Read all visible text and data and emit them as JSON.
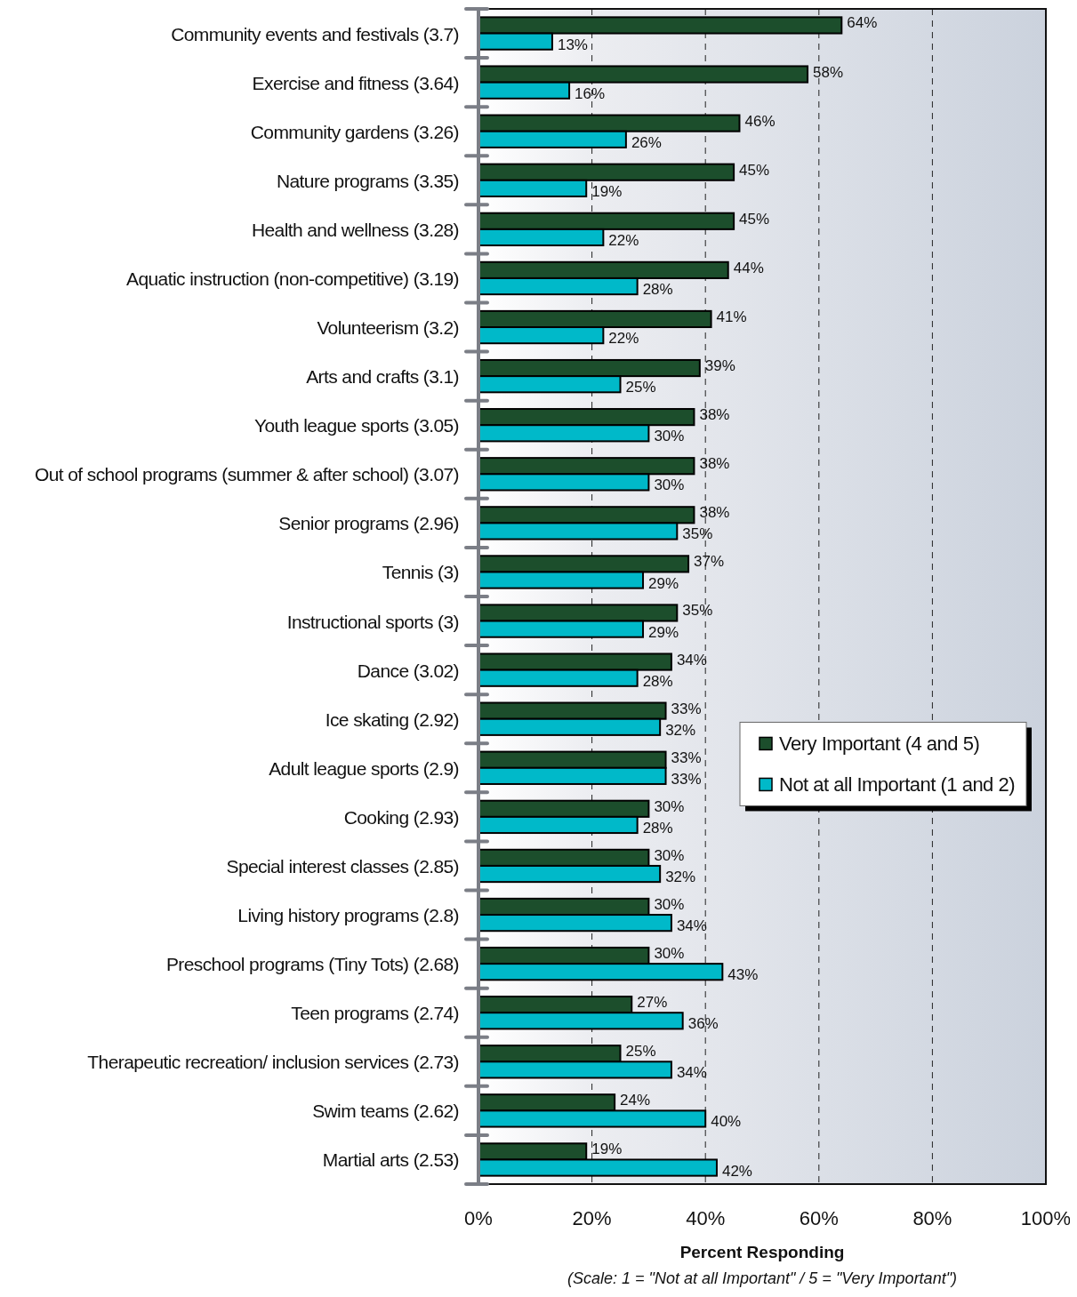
{
  "chart_data": {
    "type": "bar",
    "orientation": "horizontal",
    "categories": [
      "Community events and festivals (3.7)",
      "Exercise and fitness (3.64)",
      "Community gardens (3.26)",
      "Nature programs (3.35)",
      "Health and wellness (3.28)",
      "Aquatic instruction (non-competitive) (3.19)",
      "Volunteerism (3.2)",
      "Arts and crafts (3.1)",
      "Youth league sports (3.05)",
      "Out of school programs (summer & after school) (3.07)",
      "Senior programs (2.96)",
      "Tennis (3)",
      "Instructional sports (3)",
      "Dance (3.02)",
      "Ice skating (2.92)",
      "Adult league sports (2.9)",
      "Cooking (2.93)",
      "Special interest classes (2.85)",
      "Living history programs (2.8)",
      "Preschool programs (Tiny Tots) (2.68)",
      "Teen programs (2.74)",
      "Therapeutic recreation/ inclusion services (2.73)",
      "Swim teams (2.62)",
      "Martial arts (2.53)"
    ],
    "series": [
      {
        "name": "Very Important (4 and 5)",
        "color": "#1c4e2c",
        "values": [
          64,
          58,
          46,
          45,
          45,
          44,
          41,
          39,
          38,
          38,
          38,
          37,
          35,
          34,
          33,
          33,
          30,
          30,
          30,
          30,
          27,
          25,
          24,
          19
        ],
        "value_labels": [
          "64%",
          "58%",
          "46%",
          "45%",
          "45%",
          "44%",
          "41%",
          "39%",
          "38%",
          "38%",
          "38%",
          "37%",
          "35%",
          "34%",
          "33%",
          "33%",
          "30%",
          "30%",
          "30%",
          "30%",
          "27%",
          "25%",
          "24%",
          "19%"
        ]
      },
      {
        "name": "Not at all Important (1 and 2)",
        "color": "#00b9c9",
        "values": [
          13,
          16,
          26,
          19,
          22,
          28,
          22,
          25,
          30,
          30,
          35,
          29,
          29,
          28,
          32,
          33,
          28,
          32,
          34,
          43,
          36,
          34,
          40,
          42
        ],
        "value_labels": [
          "13%",
          "16%",
          "26%",
          "19%",
          "22%",
          "28%",
          "22%",
          "25%",
          "30%",
          "30%",
          "35%",
          "29%",
          "29%",
          "28%",
          "32%",
          "33%",
          "28%",
          "32%",
          "34%",
          "43%",
          "36%",
          "34%",
          "40%",
          "42%"
        ]
      }
    ],
    "xlim": [
      0,
      100
    ],
    "xticks": [
      {
        "value": 0,
        "label": "0%"
      },
      {
        "value": 20,
        "label": "20%"
      },
      {
        "value": 40,
        "label": "40%"
      },
      {
        "value": 60,
        "label": "60%"
      },
      {
        "value": 80,
        "label": "80%"
      },
      {
        "value": 100,
        "label": "100%"
      }
    ],
    "xlabel": "Percent Responding",
    "annotations": [
      "(Scale: 1 = \"Not at all Important\" / 5 = \"Very Important\")"
    ],
    "grid": "x",
    "legend": "right"
  }
}
